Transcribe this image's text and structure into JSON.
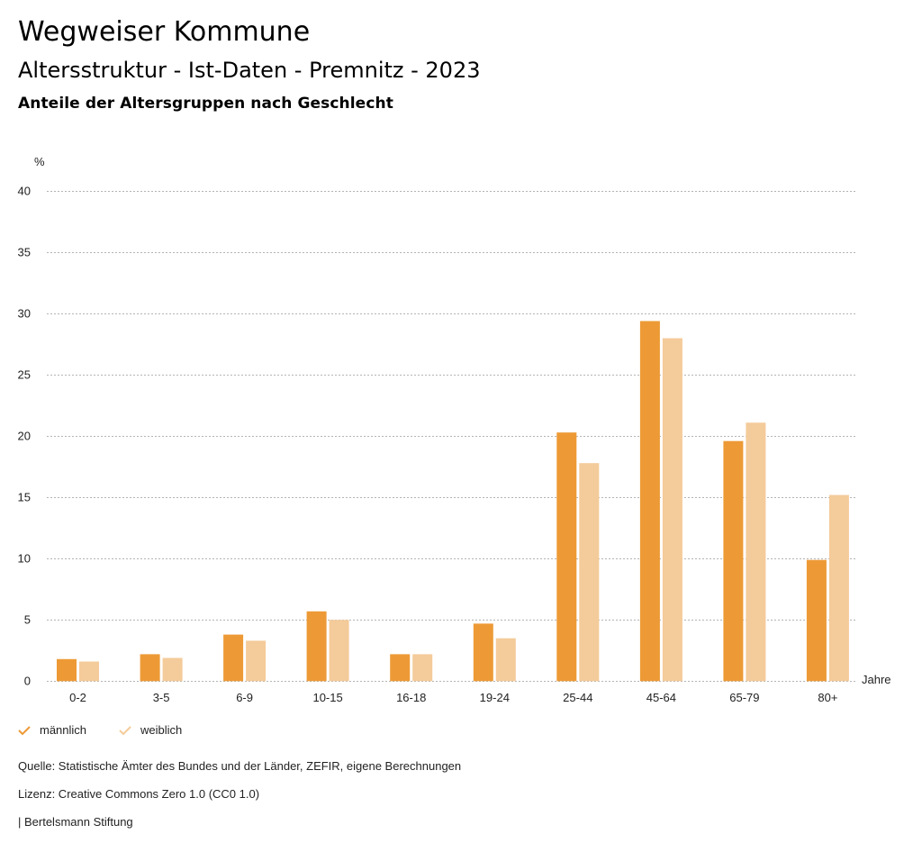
{
  "header": {
    "title": "Wegweiser Kommune",
    "subtitle": "Altersstruktur - Ist-Daten - Premnitz - 2023",
    "subsubtitle": "Anteile der Altersgruppen nach Geschlecht"
  },
  "colors": {
    "maennlich": "#ED9A36",
    "weiblich": "#F4CB9A",
    "grid": "#b4b4b4"
  },
  "chart_data": {
    "type": "bar",
    "title": "Anteile der Altersgruppen nach Geschlecht",
    "ylabel": "%",
    "xlabel": "Jahre",
    "ylim": [
      0,
      40
    ],
    "yticks": [
      0,
      5,
      10,
      15,
      20,
      25,
      30,
      35,
      40
    ],
    "grid": true,
    "legend_position": "bottom-left",
    "categories": [
      "0-2",
      "3-5",
      "6-9",
      "10-15",
      "16-18",
      "19-24",
      "25-44",
      "45-64",
      "65-79",
      "80+"
    ],
    "series": [
      {
        "name": "männlich",
        "values": [
          1.8,
          2.2,
          3.8,
          5.7,
          2.2,
          4.7,
          20.3,
          29.4,
          19.6,
          9.9
        ]
      },
      {
        "name": "weiblich",
        "values": [
          1.6,
          1.9,
          3.3,
          5.0,
          2.2,
          3.5,
          17.8,
          28.0,
          21.1,
          15.2
        ]
      }
    ]
  },
  "legend": [
    {
      "label": "männlich",
      "icon": "check-icon"
    },
    {
      "label": "weiblich",
      "icon": "check-icon"
    }
  ],
  "footer": {
    "source": "Quelle: Statistische Ämter des Bundes und der Länder, ZEFIR, eigene Berechnungen",
    "license": "Lizenz: Creative Commons Zero 1.0 (CC0 1.0)",
    "publisher": "| Bertelsmann Stiftung"
  }
}
